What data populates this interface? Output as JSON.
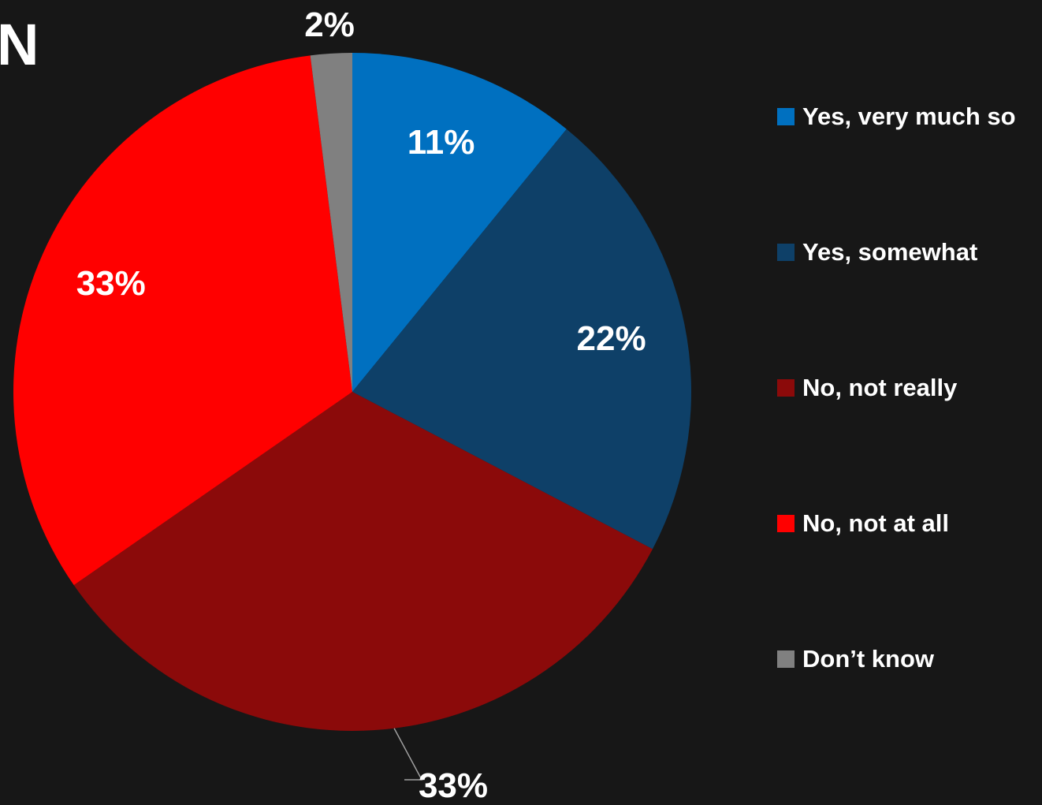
{
  "header": {
    "title_fragment": "N"
  },
  "chart_data": {
    "type": "pie",
    "categories": [
      "Yes, very much so",
      "Yes, somewhat",
      "No, not really",
      "No, not at all",
      "Don’t know"
    ],
    "values": [
      11,
      22,
      33,
      33,
      2
    ],
    "data_labels": [
      "11%",
      "22%",
      "33%",
      "33%",
      "2%"
    ],
    "colors": [
      "#0070C0",
      "#0E4068",
      "#8B0A0A",
      "#FF0000",
      "#808080"
    ],
    "start_angle_deg": 0,
    "direction": "clockwise",
    "legend_position": "right",
    "title": ""
  }
}
